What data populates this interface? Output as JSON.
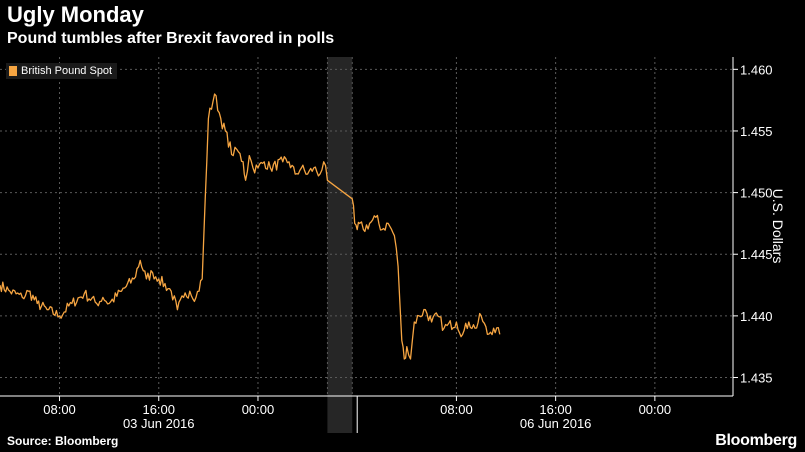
{
  "header": {
    "title": "Ugly Monday",
    "subtitle": "Pound tumbles after Brexit favored in polls"
  },
  "footer": {
    "source": "Source: Bloomberg",
    "brand": "Bloomberg"
  },
  "colors": {
    "series": "#f6a542",
    "background": "#000000",
    "weekend_band": "#262626",
    "grid": "#5a5a5a"
  },
  "chart_data": {
    "type": "line",
    "title": "Ugly Monday",
    "subtitle": "Pound tumbles after Brexit favored in polls",
    "ylabel": "U.S. Dollars",
    "xlabel": "",
    "ylim": [
      1.4335,
      1.461
    ],
    "xlim_hours": [
      3.2,
      62.3
    ],
    "y_ticks": [
      1.435,
      1.44,
      1.445,
      1.45,
      1.455,
      1.46
    ],
    "y_tick_labels": [
      "1.435",
      "1.440",
      "1.445",
      "1.450",
      "1.455",
      "1.460"
    ],
    "x_ticks_hours": [
      8,
      16,
      24,
      40,
      48,
      56
    ],
    "x_tick_labels": [
      "08:00",
      "16:00",
      "00:00",
      "08:00",
      "16:00",
      "00:00"
    ],
    "date_labels": [
      {
        "text": "03 Jun 2016",
        "hour": 16
      },
      {
        "text": "06 Jun 2016",
        "hour": 48
      }
    ],
    "day_separators_hours": [
      32
    ],
    "weekend_gap_hours": [
      29.6,
      31.6
    ],
    "legend": "British Pound Spot",
    "legend_position": "top-left",
    "grid": true,
    "series": [
      {
        "name": "British Pound Spot",
        "x_hours": [
          3.2,
          4.0,
          5.0,
          5.5,
          6.2,
          7.0,
          8.0,
          9.0,
          10.0,
          11.0,
          11.5,
          12.0,
          13.0,
          14.0,
          14.5,
          15.0,
          15.5,
          16.0,
          17.0,
          17.5,
          18.0,
          18.5,
          19.0,
          19.5,
          20.0,
          20.5,
          21.0,
          22.0,
          22.3,
          22.8,
          23.0,
          23.3,
          23.6,
          24.0,
          24.5,
          25.0,
          26.0,
          26.5,
          27.0,
          27.5,
          28.0,
          28.5,
          29.0,
          29.3,
          29.6,
          31.6,
          31.8,
          32.0,
          32.2,
          32.5,
          33.0,
          33.5,
          34.0,
          34.5,
          35.0,
          35.3,
          35.6,
          35.8,
          36.0,
          36.3,
          36.6,
          37.0,
          37.5,
          38.0,
          38.5,
          39.0,
          40.0,
          40.5,
          41.0,
          41.5,
          42.0,
          42.5,
          43.0,
          43.5
        ],
        "values": [
          1.4425,
          1.442,
          1.4415,
          1.442,
          1.441,
          1.4405,
          1.44,
          1.441,
          1.4418,
          1.441,
          1.4415,
          1.441,
          1.442,
          1.443,
          1.4445,
          1.443,
          1.4435,
          1.443,
          1.442,
          1.4405,
          1.4415,
          1.442,
          1.4415,
          1.443,
          1.456,
          1.458,
          1.456,
          1.453,
          1.4535,
          1.4525,
          1.451,
          1.453,
          1.452,
          1.452,
          1.4525,
          1.452,
          1.4525,
          1.4525,
          1.4515,
          1.452,
          1.4515,
          1.452,
          1.4515,
          1.4525,
          1.451,
          1.4495,
          1.4475,
          1.447,
          1.4475,
          1.447,
          1.4475,
          1.448,
          1.447,
          1.4475,
          1.4465,
          1.444,
          1.438,
          1.4365,
          1.4375,
          1.4365,
          1.4395,
          1.44,
          1.4405,
          1.4395,
          1.44,
          1.439,
          1.4395,
          1.4385,
          1.4395,
          1.439,
          1.44,
          1.4385,
          1.439,
          1.4385
        ]
      }
    ]
  }
}
